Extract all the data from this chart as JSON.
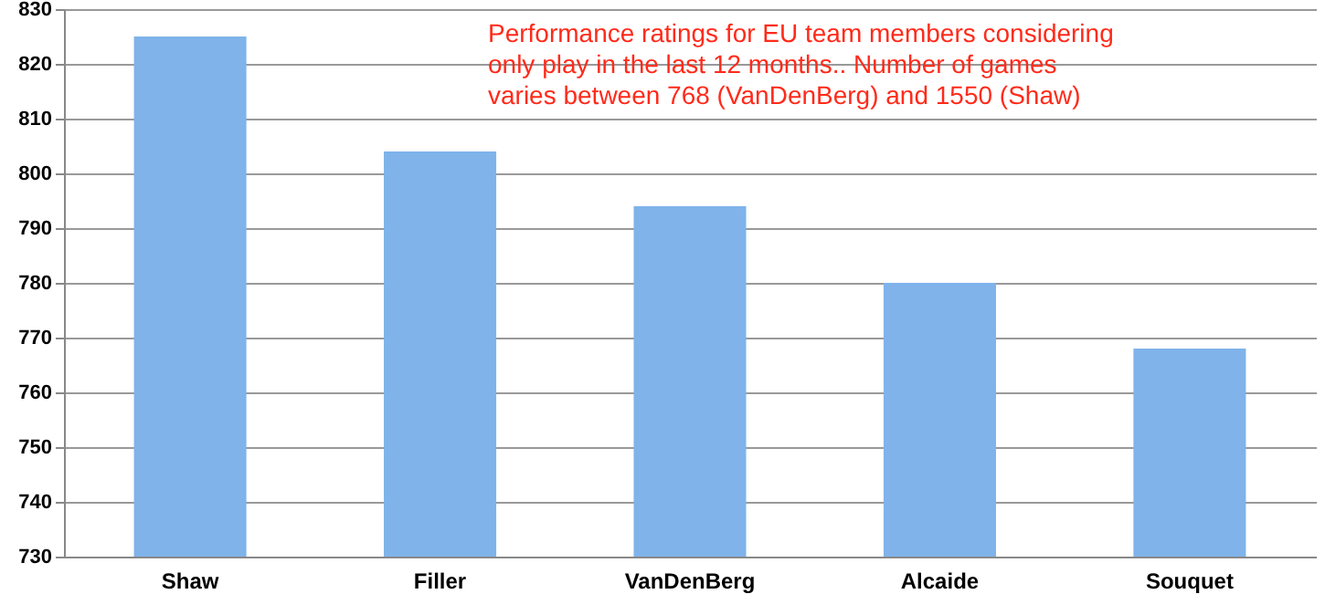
{
  "chart_data": {
    "type": "bar",
    "categories": [
      "Shaw",
      "Filler",
      "VanDenBerg",
      "Alcaide",
      "Souquet"
    ],
    "values": [
      825,
      804,
      794,
      780,
      768
    ],
    "color": "#7fb3ea",
    "ylim": [
      730,
      830
    ],
    "yticks": [
      730,
      740,
      750,
      760,
      770,
      780,
      790,
      800,
      810,
      820,
      830
    ],
    "grid": "y",
    "annotations": [
      "Performance ratings for EU team members considering only play in the last 12 months..  Number of games varies between 768 (VanDenBerg) and 1550 (Shaw)"
    ]
  }
}
